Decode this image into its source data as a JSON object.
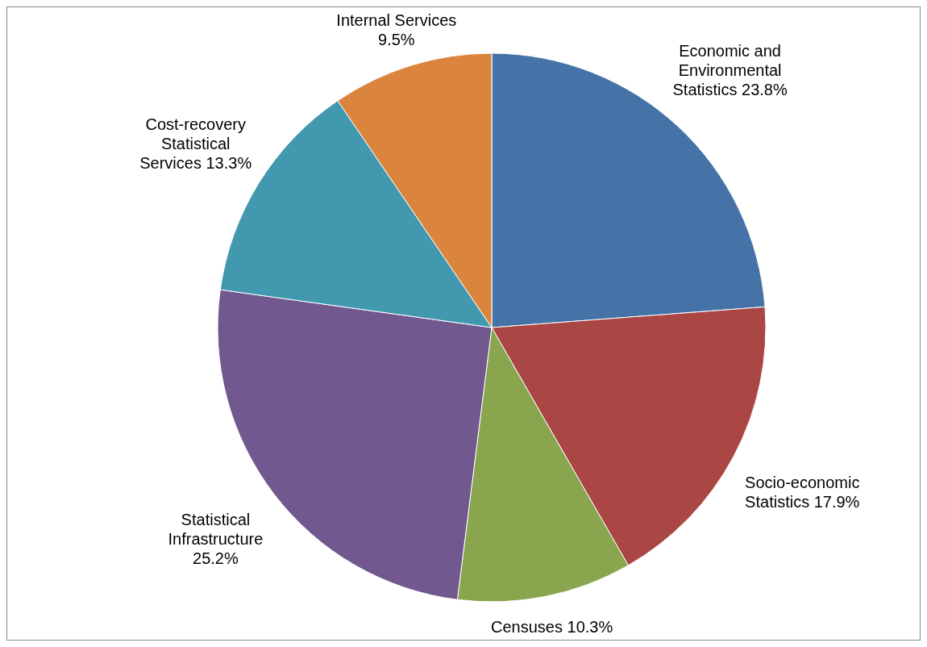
{
  "chart_data": {
    "type": "pie",
    "categories": [
      "Economic and Environmental Statistics",
      "Socio-economic Statistics",
      "Censuses",
      "Statistical Infrastructure",
      "Cost-recovery Statistical Services",
      "Internal Services"
    ],
    "values": [
      23.8,
      17.9,
      10.3,
      25.2,
      13.3,
      9.5
    ],
    "colors": [
      "#4572a7",
      "#aa4643",
      "#89a54e",
      "#71588f",
      "#4198af",
      "#db843d"
    ],
    "value_labels": [
      "23.8%",
      "17.9%",
      "10.3%",
      "25.2%",
      "13.3%",
      "9.5%"
    ]
  }
}
